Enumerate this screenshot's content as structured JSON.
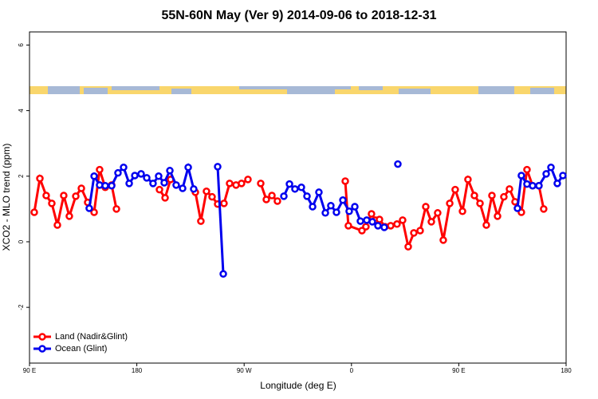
{
  "chart_data": {
    "type": "line",
    "title": "55N-60N May (Ver 9)   2014-09-06 to 2018-12-31",
    "x_label": "Longitude (deg E)",
    "y_label": "XCO2 - MLO trend (ppm)",
    "xlim": [
      90,
      540
    ],
    "ylim": [
      -3.7,
      6.4
    ],
    "xticks": [
      {
        "value": 90,
        "label": "90 E"
      },
      180,
      {
        "value": 270,
        "label": "90 W"
      },
      {
        "value": 360,
        "label": "0"
      },
      {
        "value": 450,
        "label": "90 E"
      },
      {
        "value": 540,
        "label": "180"
      }
    ],
    "yticks": [
      -2,
      0,
      2,
      4,
      6
    ],
    "legend": "bottomleft",
    "series": [
      {
        "name": "Land (Nadir&Glint)",
        "color": "#ff0000",
        "x": [
          94.0,
          98.7,
          104.0,
          108.7,
          113.4,
          118.7,
          123.4,
          128.8,
          133.5,
          138.8,
          144.2,
          148.8,
          153.5,
          158.9,
          162.9,
          null,
          199.0,
          203.7,
          208.3,
          null,
          229.1,
          233.7,
          238.4,
          243.1,
          247.8,
          253.1,
          257.8,
          263.2,
          267.8,
          273.2,
          null,
          283.9,
          288.6,
          293.3,
          297.9,
          null,
          354.8,
          357.4,
          368.8,
          372.1,
          376.8,
          380.2,
          383.5,
          388.2,
          392.9,
          398.2,
          402.9,
          407.6,
          412.3,
          417.6,
          422.3,
          427.0,
          432.3,
          437.0,
          442.4,
          447.0,
          453.1,
          457.7,
          463.1,
          467.8,
          473.1,
          477.8,
          482.5,
          487.8,
          492.5,
          497.2,
          502.5,
          507.2,
          511.9,
          517.2,
          521.2
        ],
        "values": [
          0.9,
          1.93,
          1.41,
          1.17,
          0.51,
          1.41,
          0.78,
          1.39,
          1.63,
          1.2,
          0.9,
          2.2,
          1.66,
          1.73,
          1.0,
          null,
          1.59,
          1.34,
          1.9,
          null,
          1.51,
          0.63,
          1.54,
          1.37,
          1.15,
          1.17,
          1.78,
          1.73,
          1.78,
          1.9,
          null,
          1.78,
          1.29,
          1.41,
          1.24,
          null,
          1.85,
          0.49,
          0.34,
          0.46,
          0.85,
          0.66,
          0.68,
          0.46,
          0.49,
          0.54,
          0.66,
          -0.15,
          0.27,
          0.34,
          1.07,
          0.61,
          0.88,
          0.05,
          1.17,
          1.59,
          0.93,
          1.9,
          1.41,
          1.17,
          0.51,
          1.41,
          0.78,
          1.37,
          1.61,
          1.22,
          0.9,
          2.2,
          1.71,
          1.71,
          1.0
        ]
      },
      {
        "name": "Ocean (Glint)",
        "color": "#0000ee",
        "x": [
          140.1,
          144.2,
          148.8,
          153.5,
          158.9,
          164.2,
          168.9,
          173.6,
          178.3,
          183.6,
          188.3,
          193.6,
          198.3,
          203.0,
          207.7,
          213.0,
          218.4,
          223.1,
          227.7,
          null,
          247.8,
          252.5,
          null,
          303.3,
          308.0,
          312.6,
          318.0,
          322.7,
          327.4,
          332.7,
          338.1,
          342.7,
          347.4,
          352.8,
          358.1,
          362.8,
          367.5,
          372.8,
          377.5,
          382.2,
          387.5,
          null,
          398.9,
          null,
          499.2,
          502.5,
          507.2,
          511.9,
          517.2,
          523.3,
          527.3,
          532.6,
          537.3
        ],
        "values": [
          1.02,
          2.0,
          1.73,
          1.71,
          1.71,
          2.1,
          2.27,
          1.78,
          2.02,
          2.07,
          1.95,
          1.78,
          2.0,
          1.8,
          2.17,
          1.73,
          1.63,
          2.27,
          1.61,
          null,
          2.29,
          -0.98,
          null,
          1.39,
          1.76,
          1.61,
          1.66,
          1.39,
          1.07,
          1.51,
          0.88,
          1.1,
          0.9,
          1.27,
          0.93,
          1.07,
          0.63,
          0.66,
          0.61,
          0.49,
          0.44,
          null,
          2.37,
          null,
          1.02,
          2.02,
          1.76,
          1.71,
          1.71,
          2.07,
          2.27,
          1.78,
          2.02
        ]
      }
    ]
  }
}
